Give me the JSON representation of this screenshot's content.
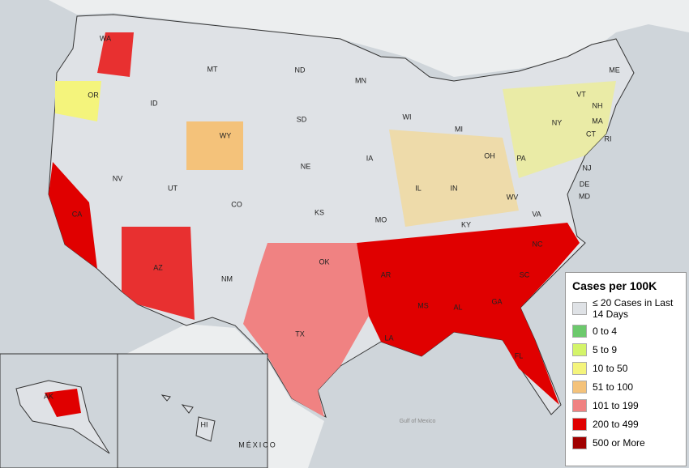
{
  "legend": {
    "title": "Cases per 100K",
    "items": [
      {
        "label": "≤ 20 Cases in Last 14 Days",
        "color": "#dfe2e6"
      },
      {
        "label": "0 to 4",
        "color": "#6cc96c"
      },
      {
        "label": "5 to 9",
        "color": "#d4f46a"
      },
      {
        "label": "10 to 50",
        "color": "#f4f47c"
      },
      {
        "label": "51 to 100",
        "color": "#f4c27a"
      },
      {
        "label": "101 to 199",
        "color": "#f08282"
      },
      {
        "label": "200 to 499",
        "color": "#e00000"
      },
      {
        "label": "500 or More",
        "color": "#a00000"
      }
    ]
  },
  "state_labels": [
    "WA",
    "OR",
    "ID",
    "MT",
    "ND",
    "MN",
    "WI",
    "MI",
    "NY",
    "VT",
    "NH",
    "ME",
    "MA",
    "CT",
    "RI",
    "PA",
    "NJ",
    "DE",
    "MD",
    "OH",
    "IN",
    "IL",
    "IA",
    "SD",
    "NE",
    "WY",
    "NV",
    "UT",
    "CO",
    "CA",
    "AZ",
    "NM",
    "KS",
    "MO",
    "KY",
    "WV",
    "VA",
    "NC",
    "SC",
    "GA",
    "AL",
    "MS",
    "LA",
    "AR",
    "OK",
    "TX",
    "FL",
    "AK",
    "HI"
  ],
  "places": [
    "MÉXICO",
    "Gulf of Mexico"
  ]
}
